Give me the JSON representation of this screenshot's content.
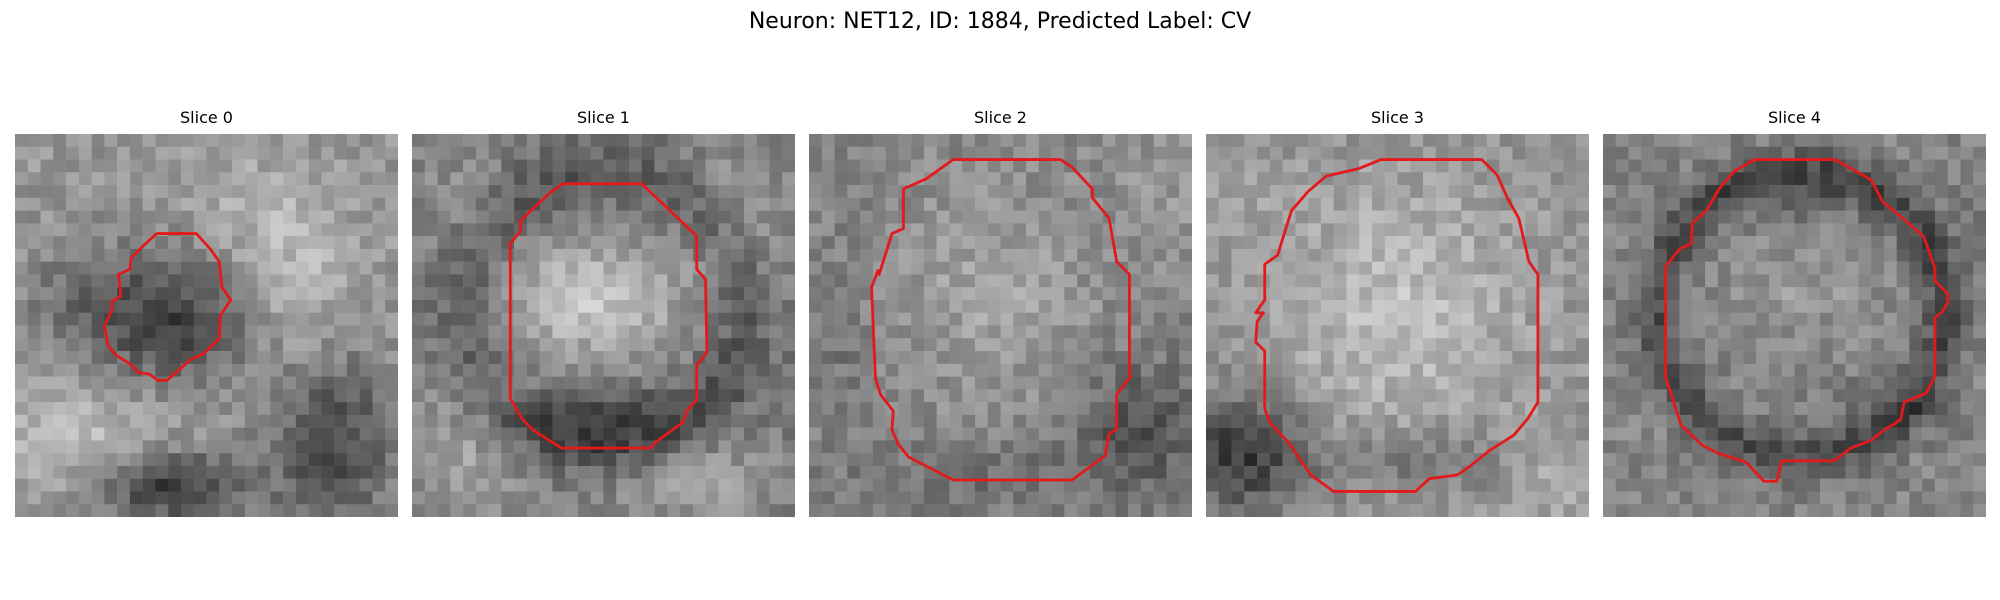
{
  "figure": {
    "title": "Neuron: NET12, ID: 1884, Predicted Label: CV"
  },
  "panels": [
    {
      "title": "Slice 0",
      "seed": 11,
      "theme": "left-blob"
    },
    {
      "title": "Slice 1",
      "seed": 23,
      "theme": "bright-disk"
    },
    {
      "title": "Slice 2",
      "seed": 37,
      "theme": "wide-disk"
    },
    {
      "title": "Slice 3",
      "seed": 53,
      "theme": "bright-large"
    },
    {
      "title": "Slice 4",
      "seed": 71,
      "theme": "ringed"
    }
  ],
  "colors": {
    "contour": "#e31a1c"
  }
}
